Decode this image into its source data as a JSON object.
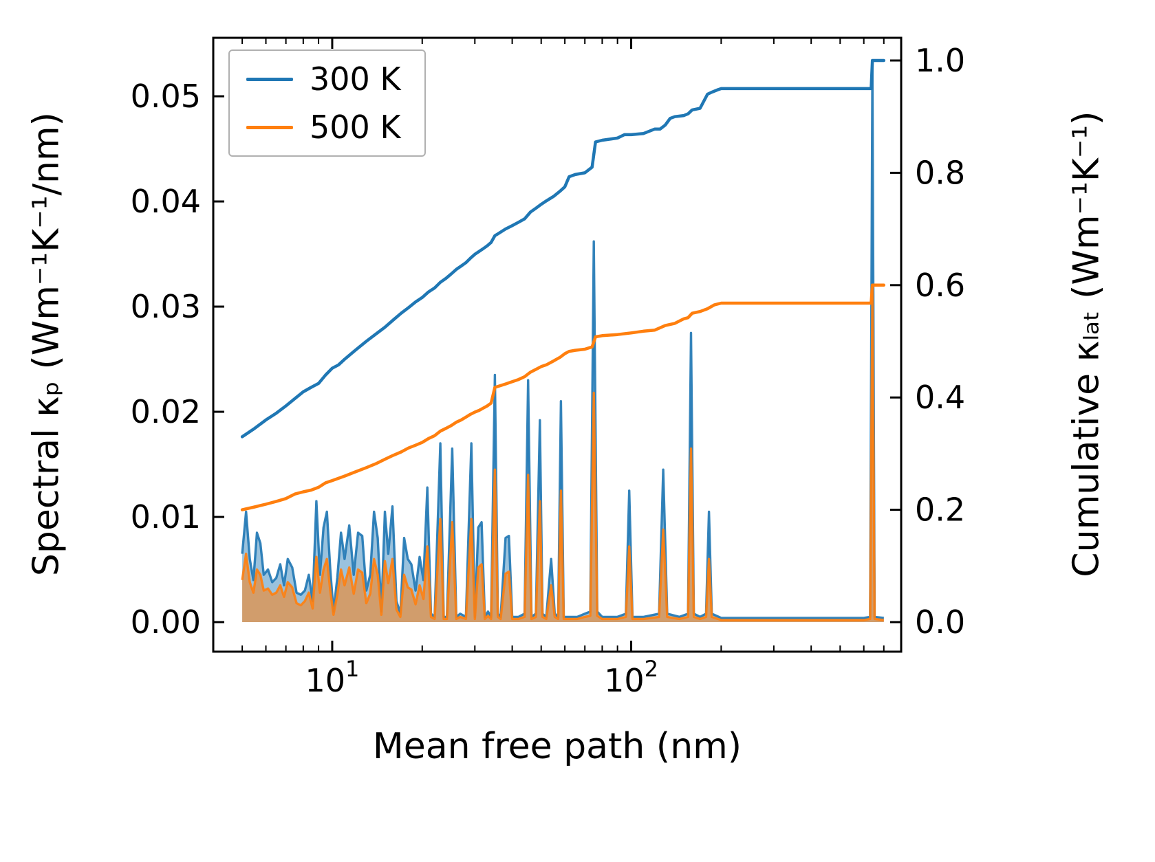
{
  "chart_data": {
    "type": "line",
    "title": "",
    "xlabel": "Mean free path (nm)",
    "ylabel_left": "Spectral κₚ (Wm⁻¹K⁻¹/nm)",
    "ylabel_right": "Cumulative κₗₐₜ (Wm⁻¹K⁻¹)",
    "x_scale": "log",
    "grid": false,
    "xlim": [
      4.0,
      800.0
    ],
    "ylim_left": [
      -0.00281,
      0.05556
    ],
    "ylim_right": [
      -0.0526,
      1.0404
    ],
    "x_ticks": [
      {
        "value": 10,
        "base": "10",
        "exp": "1"
      },
      {
        "value": 100,
        "base": "10",
        "exp": "2"
      }
    ],
    "x_minor_ticks": [
      5,
      6,
      7,
      8,
      9,
      20,
      30,
      40,
      50,
      60,
      70,
      80,
      90,
      200,
      300,
      400,
      500,
      600,
      700
    ],
    "y_ticks_left": [
      {
        "value": 0.0,
        "label": "0.00"
      },
      {
        "value": 0.01,
        "label": "0.01"
      },
      {
        "value": 0.02,
        "label": "0.02"
      },
      {
        "value": 0.03,
        "label": "0.03"
      },
      {
        "value": 0.04,
        "label": "0.04"
      },
      {
        "value": 0.05,
        "label": "0.05"
      }
    ],
    "y_ticks_right": [
      {
        "value": 0.0,
        "label": "0.0"
      },
      {
        "value": 0.2,
        "label": "0.2"
      },
      {
        "value": 0.4,
        "label": "0.4"
      },
      {
        "value": 0.6,
        "label": "0.6"
      },
      {
        "value": 0.8,
        "label": "0.8"
      },
      {
        "value": 1.0,
        "label": "1.0"
      }
    ],
    "legend": {
      "position": "upper left",
      "entries": [
        {
          "label": "300 K",
          "color": "#1f77b4"
        },
        {
          "label": "500 K",
          "color": "#ff7f0e"
        }
      ]
    },
    "spectral": {
      "x": [
        5.0,
        5.15,
        5.3,
        5.45,
        5.6,
        5.75,
        5.9,
        6.1,
        6.3,
        6.5,
        6.7,
        6.9,
        7.1,
        7.35,
        7.6,
        7.85,
        8.1,
        8.35,
        8.6,
        8.85,
        9.1,
        9.35,
        9.6,
        9.85,
        10.1,
        10.4,
        10.7,
        11.0,
        11.4,
        11.8,
        12.2,
        12.6,
        13.0,
        13.4,
        13.8,
        14.2,
        14.6,
        15.0,
        15.4,
        15.9,
        16.4,
        16.9,
        17.4,
        17.9,
        18.4,
        19.0,
        19.6,
        20.2,
        20.8,
        21.4,
        22.0,
        23.0,
        23.6,
        24.2,
        25.2,
        26.0,
        26.8,
        28.0,
        29.2,
        30.0,
        30.8,
        31.6,
        32.4,
        33.2,
        34.0,
        35.0,
        35.8,
        36.6,
        38.0,
        39.0,
        40.0,
        42.0,
        44.0,
        45.2,
        46.4,
        48.0,
        49.5,
        50.5,
        52.0,
        54.0,
        55.5,
        57.0,
        58.2,
        59.5,
        62.0,
        66.0,
        70.0,
        73.0,
        75.0,
        77.0,
        80.0,
        90.0,
        96.0,
        98.5,
        101.0,
        110.0,
        124.0,
        128.0,
        132.0,
        145.0,
        155.0,
        158.5,
        162.0,
        170.0,
        178.0,
        182.0,
        186.0,
        200.0,
        300.0,
        450.0,
        600.0,
        630.0,
        641.0,
        652.0,
        700.0
      ],
      "series": [
        {
          "name": "300 K",
          "color": "#1f77b4",
          "fill_opacity": 0.45,
          "values": [
            0.0065,
            0.0105,
            0.006,
            0.004,
            0.0085,
            0.0075,
            0.0045,
            0.005,
            0.0038,
            0.0042,
            0.0055,
            0.0035,
            0.006,
            0.0052,
            0.0028,
            0.0026,
            0.003,
            0.0045,
            0.002,
            0.0115,
            0.0045,
            0.009,
            0.0105,
            0.005,
            0.001,
            0.0042,
            0.0085,
            0.006,
            0.0092,
            0.0045,
            0.0085,
            0.0082,
            0.003,
            0.0045,
            0.0105,
            0.008,
            0.001,
            0.0105,
            0.0065,
            0.011,
            0.002,
            0.0008,
            0.008,
            0.006,
            0.0055,
            0.003,
            0.0062,
            0.004,
            0.0128,
            0.0008,
            0.0005,
            0.017,
            0.0005,
            0.0005,
            0.0165,
            0.0005,
            0.0008,
            0.0005,
            0.017,
            0.0005,
            0.009,
            0.0095,
            0.0005,
            0.001,
            0.0005,
            0.0235,
            0.0008,
            0.0005,
            0.008,
            0.0082,
            0.0005,
            0.0005,
            0.0008,
            0.023,
            0.0005,
            0.0008,
            0.0192,
            0.0008,
            0.0005,
            0.006,
            0.0008,
            0.0005,
            0.021,
            0.0005,
            0.0005,
            0.0005,
            0.0008,
            0.001,
            0.0362,
            0.001,
            0.0005,
            0.0005,
            0.0008,
            0.0125,
            0.0005,
            0.0005,
            0.0008,
            0.0145,
            0.0008,
            0.0005,
            0.0008,
            0.0275,
            0.0008,
            0.0005,
            0.0008,
            0.0105,
            0.0008,
            0.0004,
            0.0004,
            0.0004,
            0.0004,
            0.0005,
            0.053,
            0.0005,
            0.0004
          ]
        },
        {
          "name": "500 K",
          "color": "#ff7f0e",
          "fill_opacity": 0.55,
          "values": [
            0.004,
            0.0065,
            0.0038,
            0.0028,
            0.005,
            0.0045,
            0.003,
            0.0032,
            0.0026,
            0.0028,
            0.0035,
            0.0024,
            0.0038,
            0.0033,
            0.0018,
            0.0016,
            0.002,
            0.0028,
            0.0013,
            0.0062,
            0.0028,
            0.005,
            0.006,
            0.003,
            0.0007,
            0.0026,
            0.005,
            0.0035,
            0.0052,
            0.0027,
            0.005,
            0.0047,
            0.0018,
            0.0027,
            0.006,
            0.0045,
            0.0007,
            0.0058,
            0.0037,
            0.006,
            0.0012,
            0.0005,
            0.0045,
            0.0033,
            0.0031,
            0.0017,
            0.0035,
            0.0022,
            0.0072,
            0.0005,
            0.0003,
            0.0098,
            0.0003,
            0.0003,
            0.0095,
            0.0003,
            0.0005,
            0.0003,
            0.0098,
            0.0003,
            0.0052,
            0.0055,
            0.0003,
            0.0006,
            0.0003,
            0.0145,
            0.0005,
            0.0003,
            0.0046,
            0.0048,
            0.0003,
            0.0003,
            0.0005,
            0.014,
            0.0003,
            0.0005,
            0.0115,
            0.0005,
            0.0003,
            0.0035,
            0.0005,
            0.0003,
            0.0125,
            0.0003,
            0.0003,
            0.0003,
            0.0005,
            0.0006,
            0.0218,
            0.0006,
            0.0003,
            0.0003,
            0.0005,
            0.0072,
            0.0003,
            0.0003,
            0.0005,
            0.0088,
            0.0005,
            0.0003,
            0.0005,
            0.0165,
            0.0005,
            0.0003,
            0.0005,
            0.006,
            0.0005,
            0.0002,
            0.0002,
            0.0002,
            0.0002,
            0.0003,
            0.0318,
            0.0003,
            0.0002
          ]
        }
      ]
    },
    "cumulative": {
      "series": [
        {
          "name": "300 K",
          "color": "#1f77b4",
          "points": [
            [
              5,
              0.33
            ],
            [
              5.5,
              0.345
            ],
            [
              6,
              0.36
            ],
            [
              6.5,
              0.372
            ],
            [
              7,
              0.385
            ],
            [
              7.5,
              0.398
            ],
            [
              8,
              0.41
            ],
            [
              8.5,
              0.418
            ],
            [
              9,
              0.425
            ],
            [
              9.5,
              0.44
            ],
            [
              10,
              0.452
            ],
            [
              10.5,
              0.458
            ],
            [
              11,
              0.468
            ],
            [
              12,
              0.485
            ],
            [
              13,
              0.5
            ],
            [
              14,
              0.513
            ],
            [
              15,
              0.525
            ],
            [
              16,
              0.538
            ],
            [
              17,
              0.55
            ],
            [
              18,
              0.56
            ],
            [
              19,
              0.57
            ],
            [
              20,
              0.578
            ],
            [
              21,
              0.588
            ],
            [
              22,
              0.595
            ],
            [
              23,
              0.605
            ],
            [
              24,
              0.612
            ],
            [
              25,
              0.62
            ],
            [
              26,
              0.628
            ],
            [
              27,
              0.634
            ],
            [
              28,
              0.64
            ],
            [
              29,
              0.648
            ],
            [
              30,
              0.655
            ],
            [
              31,
              0.66
            ],
            [
              32,
              0.665
            ],
            [
              33,
              0.67
            ],
            [
              34,
              0.676
            ],
            [
              35,
              0.688
            ],
            [
              36,
              0.692
            ],
            [
              38,
              0.7
            ],
            [
              40,
              0.706
            ],
            [
              42,
              0.712
            ],
            [
              44,
              0.718
            ],
            [
              46,
              0.73
            ],
            [
              48,
              0.737
            ],
            [
              50,
              0.744
            ],
            [
              52,
              0.75
            ],
            [
              55,
              0.758
            ],
            [
              58,
              0.768
            ],
            [
              60,
              0.775
            ],
            [
              62,
              0.793
            ],
            [
              65,
              0.797
            ],
            [
              70,
              0.8
            ],
            [
              74,
              0.81
            ],
            [
              76,
              0.855
            ],
            [
              80,
              0.858
            ],
            [
              85,
              0.86
            ],
            [
              90,
              0.862
            ],
            [
              95,
              0.868
            ],
            [
              100,
              0.868
            ],
            [
              110,
              0.87
            ],
            [
              120,
              0.878
            ],
            [
              125,
              0.878
            ],
            [
              130,
              0.885
            ],
            [
              135,
              0.897
            ],
            [
              140,
              0.9
            ],
            [
              150,
              0.902
            ],
            [
              155,
              0.905
            ],
            [
              160,
              0.912
            ],
            [
              170,
              0.915
            ],
            [
              180,
              0.94
            ],
            [
              185,
              0.943
            ],
            [
              195,
              0.948
            ],
            [
              200,
              0.95
            ],
            [
              300,
              0.95
            ],
            [
              450,
              0.95
            ],
            [
              600,
              0.95
            ],
            [
              635,
              0.95
            ],
            [
              641,
              1.0
            ],
            [
              700,
              1.0
            ]
          ]
        },
        {
          "name": "500 K",
          "color": "#ff7f0e",
          "points": [
            [
              5,
              0.2
            ],
            [
              5.5,
              0.205
            ],
            [
              6,
              0.21
            ],
            [
              6.5,
              0.215
            ],
            [
              7,
              0.22
            ],
            [
              7.5,
              0.228
            ],
            [
              8,
              0.232
            ],
            [
              8.5,
              0.235
            ],
            [
              9,
              0.24
            ],
            [
              9.5,
              0.248
            ],
            [
              10,
              0.252
            ],
            [
              11,
              0.26
            ],
            [
              12,
              0.268
            ],
            [
              13,
              0.275
            ],
            [
              14,
              0.282
            ],
            [
              15,
              0.29
            ],
            [
              16,
              0.297
            ],
            [
              17,
              0.303
            ],
            [
              18,
              0.31
            ],
            [
              19,
              0.315
            ],
            [
              20,
              0.32
            ],
            [
              21,
              0.327
            ],
            [
              22,
              0.332
            ],
            [
              23,
              0.34
            ],
            [
              24,
              0.345
            ],
            [
              25,
              0.35
            ],
            [
              26,
              0.356
            ],
            [
              27,
              0.36
            ],
            [
              28,
              0.365
            ],
            [
              29,
              0.37
            ],
            [
              30,
              0.374
            ],
            [
              31,
              0.377
            ],
            [
              32,
              0.381
            ],
            [
              33,
              0.385
            ],
            [
              34,
              0.39
            ],
            [
              35,
              0.418
            ],
            [
              36,
              0.42
            ],
            [
              38,
              0.424
            ],
            [
              40,
              0.428
            ],
            [
              42,
              0.432
            ],
            [
              44,
              0.437
            ],
            [
              46,
              0.445
            ],
            [
              48,
              0.45
            ],
            [
              50,
              0.455
            ],
            [
              52,
              0.458
            ],
            [
              55,
              0.465
            ],
            [
              58,
              0.472
            ],
            [
              60,
              0.478
            ],
            [
              62,
              0.482
            ],
            [
              65,
              0.484
            ],
            [
              70,
              0.486
            ],
            [
              74,
              0.49
            ],
            [
              76,
              0.508
            ],
            [
              80,
              0.51
            ],
            [
              90,
              0.512
            ],
            [
              100,
              0.515
            ],
            [
              110,
              0.518
            ],
            [
              120,
              0.52
            ],
            [
              130,
              0.528
            ],
            [
              140,
              0.532
            ],
            [
              150,
              0.54
            ],
            [
              155,
              0.542
            ],
            [
              160,
              0.55
            ],
            [
              170,
              0.553
            ],
            [
              180,
              0.558
            ],
            [
              190,
              0.565
            ],
            [
              200,
              0.568
            ],
            [
              300,
              0.568
            ],
            [
              450,
              0.568
            ],
            [
              600,
              0.568
            ],
            [
              635,
              0.568
            ],
            [
              641,
              0.6
            ],
            [
              700,
              0.6
            ]
          ]
        }
      ]
    }
  }
}
